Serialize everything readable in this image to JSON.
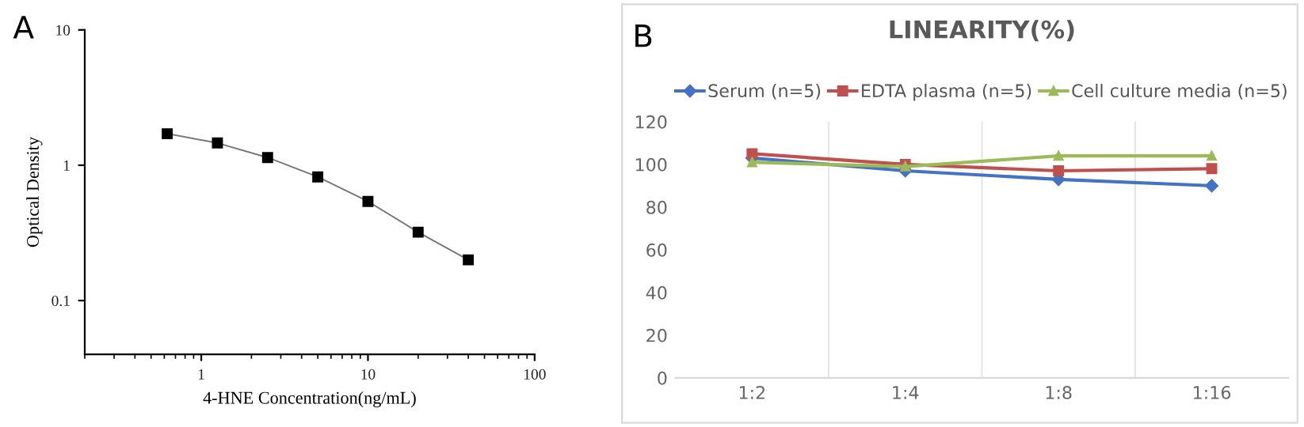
{
  "chart_data": [
    {
      "type": "line",
      "annotations": [
        "A"
      ],
      "xlabel": "4-HNE Concentration(ng/mL)",
      "ylabel": "Optical Density",
      "log": "xy",
      "xlim": [
        0.2,
        100
      ],
      "xticks": [
        1,
        10,
        100
      ],
      "ylim": [
        0.04,
        10
      ],
      "yticks": [
        0.1,
        1,
        10
      ],
      "marker": "square",
      "grid": false,
      "legend": false,
      "series": [
        {
          "color": "#000000",
          "x": [
            0.625,
            1.25,
            2.5,
            5,
            10,
            20,
            40
          ],
          "values": [
            1.71,
            1.46,
            1.14,
            0.82,
            0.54,
            0.32,
            0.2
          ]
        }
      ]
    },
    {
      "type": "line",
      "annotations": [
        "B"
      ],
      "title": "LINEARITY(%)",
      "categories": [
        "1:2",
        "1:4",
        "1:8",
        "1:16"
      ],
      "ylim": [
        0,
        120
      ],
      "yticks": [
        0,
        20,
        40,
        60,
        80,
        100,
        120
      ],
      "grid": "x",
      "legend": "top",
      "series": [
        {
          "name": "Serum (n=5)",
          "color": "#4472c4",
          "marker": "diamond",
          "values": [
            103,
            97,
            93,
            90
          ]
        },
        {
          "name": "EDTA plasma (n=5)",
          "color": "#c0504d",
          "marker": "square",
          "values": [
            105,
            100,
            97,
            98
          ]
        },
        {
          "name": "Cell culture media (n=5)",
          "color": "#9bbb59",
          "marker": "triangle",
          "values": [
            101,
            99,
            104,
            104
          ]
        }
      ]
    }
  ]
}
